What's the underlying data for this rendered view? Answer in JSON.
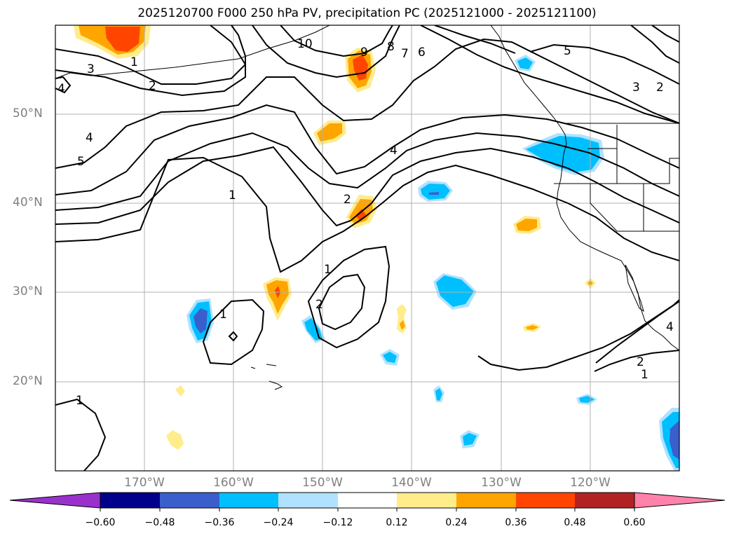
{
  "title": "2025120700 F000 250 hPa PV, precipitation PC (2025121000 - 2025121100)",
  "map": {
    "lat_labels": [
      "50°N",
      "40°N",
      "30°N",
      "20°N"
    ],
    "lon_labels": [
      "170°W",
      "160°W",
      "150°W",
      "140°W",
      "130°W",
      "120°W"
    ],
    "contour_labels": [
      "10",
      "9",
      "8",
      "7",
      "6",
      "5",
      "4",
      "3",
      "2",
      "1"
    ],
    "contour_label_instances": [
      {
        "text": "3"
      },
      {
        "text": "2"
      },
      {
        "text": "1"
      },
      {
        "text": "4"
      },
      {
        "text": "5"
      },
      {
        "text": "4"
      },
      {
        "text": "1"
      },
      {
        "text": "10"
      },
      {
        "text": "9"
      },
      {
        "text": "8"
      },
      {
        "text": "7"
      },
      {
        "text": "6"
      },
      {
        "text": "4"
      },
      {
        "text": "2"
      },
      {
        "text": "1"
      },
      {
        "text": "2"
      },
      {
        "text": "1"
      },
      {
        "text": "5"
      },
      {
        "text": "3"
      },
      {
        "text": "2"
      },
      {
        "text": "2"
      },
      {
        "text": "1"
      },
      {
        "text": "1"
      },
      {
        "text": "4"
      }
    ]
  },
  "colorbar": {
    "ticks": [
      "−0.60",
      "−0.48",
      "−0.36",
      "−0.24",
      "−0.12",
      "0.12",
      "0.24",
      "0.36",
      "0.48",
      "0.60"
    ],
    "colors": [
      "#9932cc",
      "#00008b",
      "#3a5fcd",
      "#00bfff",
      "#b0e2ff",
      "#ffffff",
      "#ffec8b",
      "#ffa500",
      "#ff4500",
      "#b22222",
      "#ff82ab"
    ]
  },
  "colors": {
    "contour": "#000000",
    "grid": "#b0b0b0",
    "neg_strong": "#3a5fcd",
    "neg_mid": "#00bfff",
    "neg_weak": "#b0e2ff",
    "pos_weak": "#ffec8b",
    "pos_mid": "#ffa500",
    "pos_strong": "#ff4500"
  }
}
